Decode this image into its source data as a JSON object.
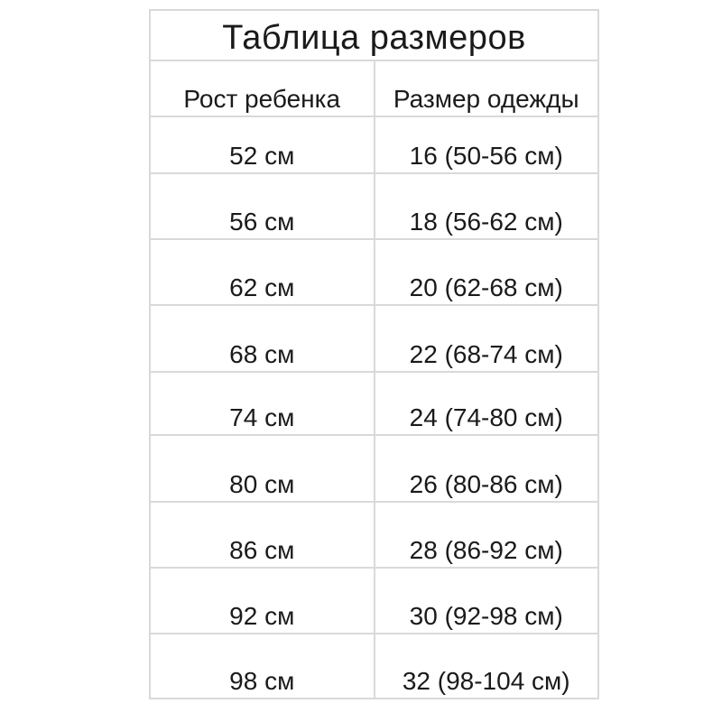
{
  "chart_data": {
    "type": "table",
    "title": "Таблица размеров",
    "columns": [
      "Рост ребенка",
      "Размер одежды"
    ],
    "rows": [
      [
        "52 см",
        "16 (50-56 см)"
      ],
      [
        "56 см",
        "18 (56-62 см)"
      ],
      [
        "62 см",
        "20 (62-68 см)"
      ],
      [
        "68 см",
        "22 (68-74 см)"
      ],
      [
        "74 см",
        "24 (74-80 см)"
      ],
      [
        "80 см",
        "26 (80-86 см)"
      ],
      [
        "86 см",
        "28 (86-92 см)"
      ],
      [
        "92 см",
        "30 (92-98 см)"
      ],
      [
        "98 см",
        "32 (98-104 см)"
      ]
    ],
    "layout": {
      "grid": "on",
      "title_position": "top-spanning-both-columns",
      "text_align": "center-bottom"
    }
  },
  "colors": {
    "border": "#d9d9d9",
    "text": "#1a1a1a",
    "background": "#ffffff"
  }
}
